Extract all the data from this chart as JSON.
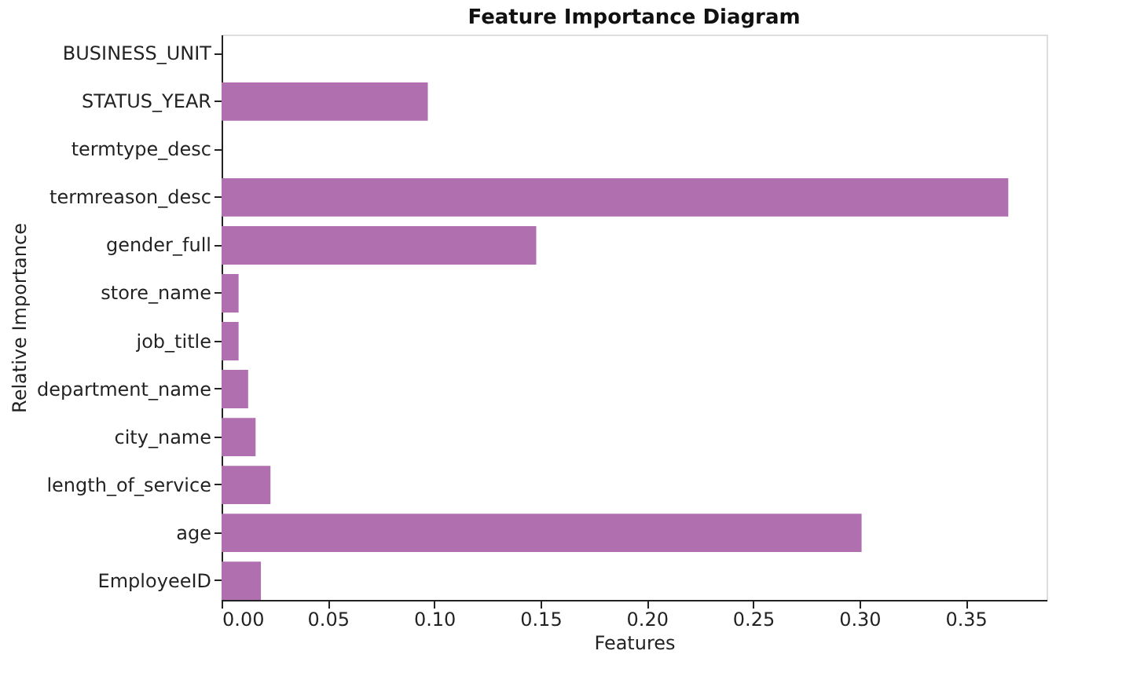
{
  "chart_data": {
    "type": "bar",
    "orientation": "horizontal",
    "title": "Feature Importance Diagram",
    "xlabel": "Features",
    "ylabel": "Relative Importance",
    "categories": [
      "BUSINESS_UNIT",
      "STATUS_YEAR",
      "termtype_desc",
      "termreason_desc",
      "gender_full",
      "store_name",
      "job_title",
      "department_name",
      "city_name",
      "length_of_service",
      "age",
      "EmployeeID"
    ],
    "values": [
      0,
      0.097,
      0,
      0.37,
      0.148,
      0.008,
      0.008,
      0.0125,
      0.016,
      0.023,
      0.301,
      0.0185
    ],
    "color": "#b070b0",
    "xlim": [
      0,
      0.388
    ],
    "xticks": [
      {
        "value": 0,
        "label": "0.00"
      },
      0.05,
      {
        "value": 0.1,
        "label": "0.10"
      },
      0.15,
      {
        "value": 0.2,
        "label": "0.20"
      },
      0.25,
      {
        "value": 0.3,
        "label": "0.30"
      },
      0.35
    ],
    "grid": false
  }
}
